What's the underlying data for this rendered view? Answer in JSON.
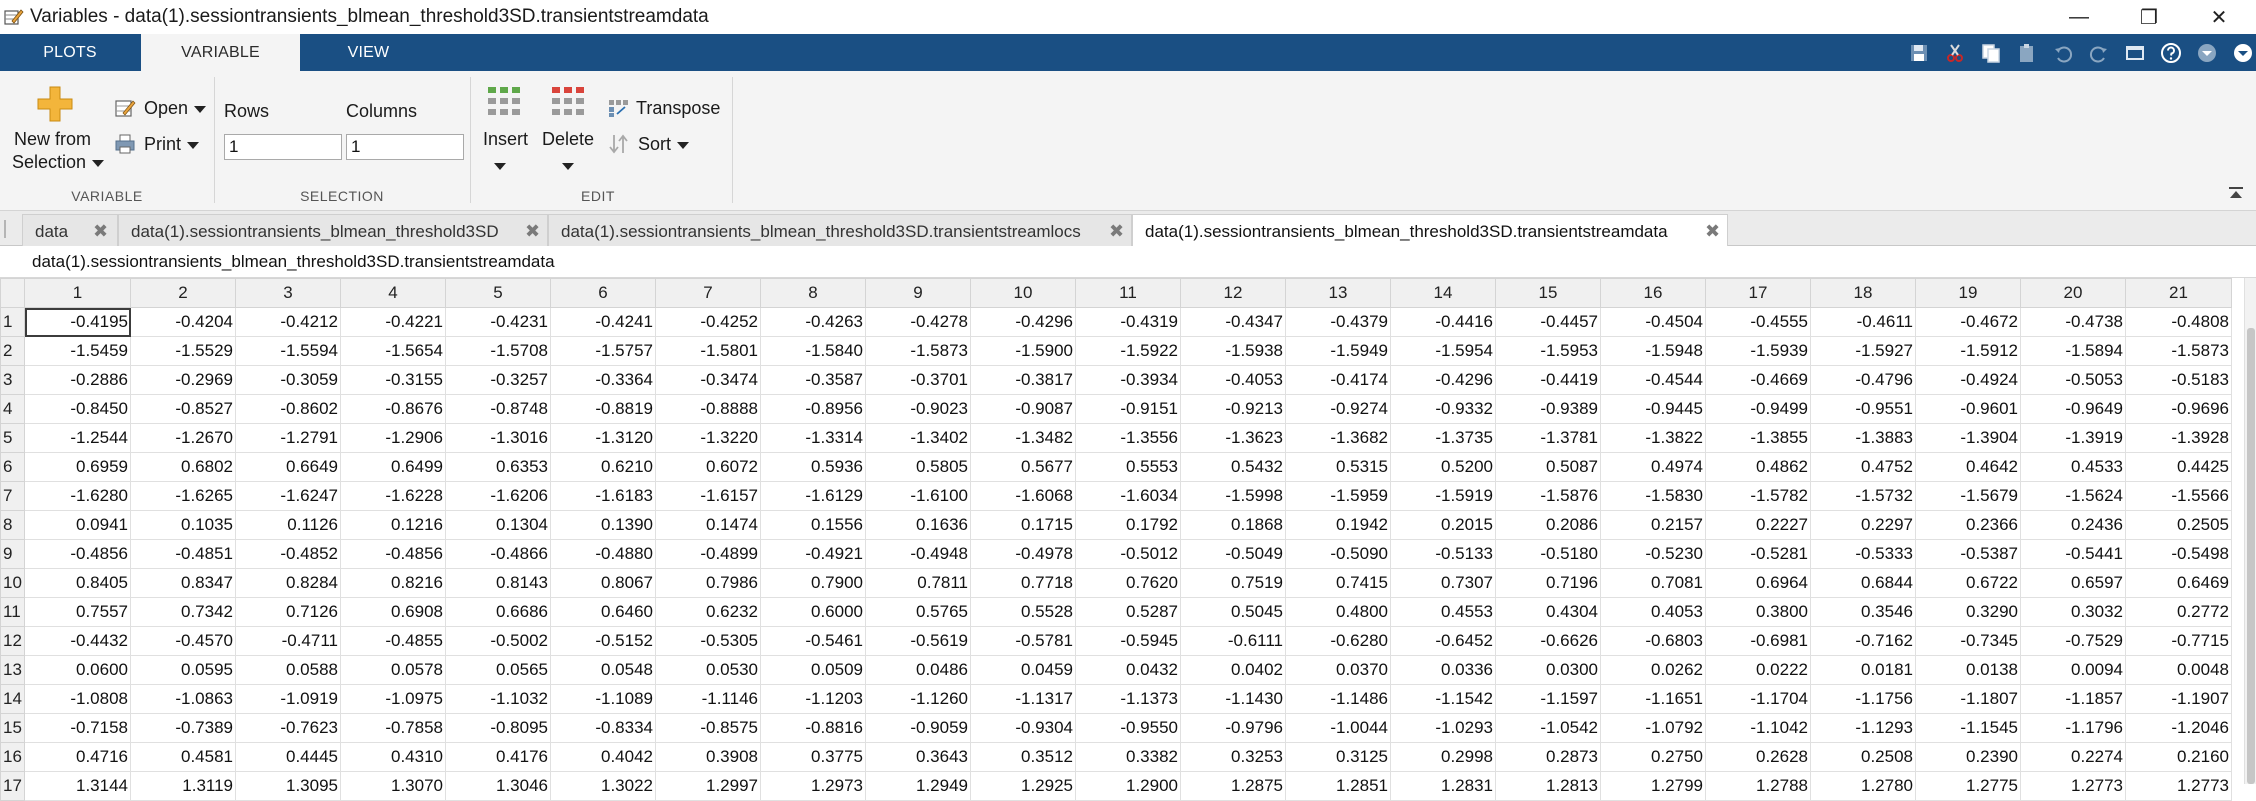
{
  "window": {
    "title": "Variables - data(1).sessiontransients_blmean_threshold3SD.transientstreamdata",
    "minimize_glyph": "—",
    "restore_glyph": "❐",
    "close_glyph": "✕"
  },
  "ribbon": {
    "tabs": [
      {
        "label": "PLOTS"
      },
      {
        "label": "VARIABLE"
      },
      {
        "label": "VIEW"
      }
    ],
    "accent_color": "#1a4f83"
  },
  "toolstrip": {
    "variable_section": {
      "label": "VARIABLE",
      "new_from_selection_line1": "New from",
      "new_from_selection_line2": "Selection",
      "open_label": "Open",
      "print_label": "Print"
    },
    "selection_section": {
      "label": "SELECTION",
      "rows_label": "Rows",
      "columns_label": "Columns",
      "rows_value": "1",
      "columns_value": "1"
    },
    "edit_section": {
      "label": "EDIT",
      "insert_label": "Insert",
      "delete_label": "Delete",
      "transpose_label": "Transpose",
      "sort_label": "Sort"
    }
  },
  "document_tabs": [
    {
      "label": "data"
    },
    {
      "label": "data(1).sessiontransients_blmean_threshold3SD"
    },
    {
      "label": "data(1).sessiontransients_blmean_threshold3SD.transientstreamlocs"
    },
    {
      "label": "data(1).sessiontransients_blmean_threshold3SD.transientstreamdata"
    }
  ],
  "close_glyph": "✖",
  "variable_path": "data(1).sessiontransients_blmean_threshold3SD.transientstreamdata",
  "grid": {
    "columns": [
      "1",
      "2",
      "3",
      "4",
      "5",
      "6",
      "7",
      "8",
      "9",
      "10",
      "11",
      "12",
      "13",
      "14",
      "15",
      "16",
      "17",
      "18",
      "19",
      "20",
      "21"
    ],
    "rows": [
      {
        "label": "1",
        "cells": [
          "-0.4195",
          "-0.4204",
          "-0.4212",
          "-0.4221",
          "-0.4231",
          "-0.4241",
          "-0.4252",
          "-0.4263",
          "-0.4278",
          "-0.4296",
          "-0.4319",
          "-0.4347",
          "-0.4379",
          "-0.4416",
          "-0.4457",
          "-0.4504",
          "-0.4555",
          "-0.4611",
          "-0.4672",
          "-0.4738",
          "-0.4808"
        ]
      },
      {
        "label": "2",
        "cells": [
          "-1.5459",
          "-1.5529",
          "-1.5594",
          "-1.5654",
          "-1.5708",
          "-1.5757",
          "-1.5801",
          "-1.5840",
          "-1.5873",
          "-1.5900",
          "-1.5922",
          "-1.5938",
          "-1.5949",
          "-1.5954",
          "-1.5953",
          "-1.5948",
          "-1.5939",
          "-1.5927",
          "-1.5912",
          "-1.5894",
          "-1.5873"
        ]
      },
      {
        "label": "3",
        "cells": [
          "-0.2886",
          "-0.2969",
          "-0.3059",
          "-0.3155",
          "-0.3257",
          "-0.3364",
          "-0.3474",
          "-0.3587",
          "-0.3701",
          "-0.3817",
          "-0.3934",
          "-0.4053",
          "-0.4174",
          "-0.4296",
          "-0.4419",
          "-0.4544",
          "-0.4669",
          "-0.4796",
          "-0.4924",
          "-0.5053",
          "-0.5183"
        ]
      },
      {
        "label": "4",
        "cells": [
          "-0.8450",
          "-0.8527",
          "-0.8602",
          "-0.8676",
          "-0.8748",
          "-0.8819",
          "-0.8888",
          "-0.8956",
          "-0.9023",
          "-0.9087",
          "-0.9151",
          "-0.9213",
          "-0.9274",
          "-0.9332",
          "-0.9389",
          "-0.9445",
          "-0.9499",
          "-0.9551",
          "-0.9601",
          "-0.9649",
          "-0.9696"
        ]
      },
      {
        "label": "5",
        "cells": [
          "-1.2544",
          "-1.2670",
          "-1.2791",
          "-1.2906",
          "-1.3016",
          "-1.3120",
          "-1.3220",
          "-1.3314",
          "-1.3402",
          "-1.3482",
          "-1.3556",
          "-1.3623",
          "-1.3682",
          "-1.3735",
          "-1.3781",
          "-1.3822",
          "-1.3855",
          "-1.3883",
          "-1.3904",
          "-1.3919",
          "-1.3928"
        ]
      },
      {
        "label": "6",
        "cells": [
          "0.6959",
          "0.6802",
          "0.6649",
          "0.6499",
          "0.6353",
          "0.6210",
          "0.6072",
          "0.5936",
          "0.5805",
          "0.5677",
          "0.5553",
          "0.5432",
          "0.5315",
          "0.5200",
          "0.5087",
          "0.4974",
          "0.4862",
          "0.4752",
          "0.4642",
          "0.4533",
          "0.4425"
        ]
      },
      {
        "label": "7",
        "cells": [
          "-1.6280",
          "-1.6265",
          "-1.6247",
          "-1.6228",
          "-1.6206",
          "-1.6183",
          "-1.6157",
          "-1.6129",
          "-1.6100",
          "-1.6068",
          "-1.6034",
          "-1.5998",
          "-1.5959",
          "-1.5919",
          "-1.5876",
          "-1.5830",
          "-1.5782",
          "-1.5732",
          "-1.5679",
          "-1.5624",
          "-1.5566"
        ]
      },
      {
        "label": "8",
        "cells": [
          "0.0941",
          "0.1035",
          "0.1126",
          "0.1216",
          "0.1304",
          "0.1390",
          "0.1474",
          "0.1556",
          "0.1636",
          "0.1715",
          "0.1792",
          "0.1868",
          "0.1942",
          "0.2015",
          "0.2086",
          "0.2157",
          "0.2227",
          "0.2297",
          "0.2366",
          "0.2436",
          "0.2505"
        ]
      },
      {
        "label": "9",
        "cells": [
          "-0.4856",
          "-0.4851",
          "-0.4852",
          "-0.4856",
          "-0.4866",
          "-0.4880",
          "-0.4899",
          "-0.4921",
          "-0.4948",
          "-0.4978",
          "-0.5012",
          "-0.5049",
          "-0.5090",
          "-0.5133",
          "-0.5180",
          "-0.5230",
          "-0.5281",
          "-0.5333",
          "-0.5387",
          "-0.5441",
          "-0.5498"
        ]
      },
      {
        "label": "10",
        "cells": [
          "0.8405",
          "0.8347",
          "0.8284",
          "0.8216",
          "0.8143",
          "0.8067",
          "0.7986",
          "0.7900",
          "0.7811",
          "0.7718",
          "0.7620",
          "0.7519",
          "0.7415",
          "0.7307",
          "0.7196",
          "0.7081",
          "0.6964",
          "0.6844",
          "0.6722",
          "0.6597",
          "0.6469"
        ]
      },
      {
        "label": "11",
        "cells": [
          "0.7557",
          "0.7342",
          "0.7126",
          "0.6908",
          "0.6686",
          "0.6460",
          "0.6232",
          "0.6000",
          "0.5765",
          "0.5528",
          "0.5287",
          "0.5045",
          "0.4800",
          "0.4553",
          "0.4304",
          "0.4053",
          "0.3800",
          "0.3546",
          "0.3290",
          "0.3032",
          "0.2772"
        ]
      },
      {
        "label": "12",
        "cells": [
          "-0.4432",
          "-0.4570",
          "-0.4711",
          "-0.4855",
          "-0.5002",
          "-0.5152",
          "-0.5305",
          "-0.5461",
          "-0.5619",
          "-0.5781",
          "-0.5945",
          "-0.6111",
          "-0.6280",
          "-0.6452",
          "-0.6626",
          "-0.6803",
          "-0.6981",
          "-0.7162",
          "-0.7345",
          "-0.7529",
          "-0.7715"
        ]
      },
      {
        "label": "13",
        "cells": [
          "0.0600",
          "0.0595",
          "0.0588",
          "0.0578",
          "0.0565",
          "0.0548",
          "0.0530",
          "0.0509",
          "0.0486",
          "0.0459",
          "0.0432",
          "0.0402",
          "0.0370",
          "0.0336",
          "0.0300",
          "0.0262",
          "0.0222",
          "0.0181",
          "0.0138",
          "0.0094",
          "0.0048"
        ]
      },
      {
        "label": "14",
        "cells": [
          "-1.0808",
          "-1.0863",
          "-1.0919",
          "-1.0975",
          "-1.1032",
          "-1.1089",
          "-1.1146",
          "-1.1203",
          "-1.1260",
          "-1.1317",
          "-1.1373",
          "-1.1430",
          "-1.1486",
          "-1.1542",
          "-1.1597",
          "-1.1651",
          "-1.1704",
          "-1.1756",
          "-1.1807",
          "-1.1857",
          "-1.1907"
        ]
      },
      {
        "label": "15",
        "cells": [
          "-0.7158",
          "-0.7389",
          "-0.7623",
          "-0.7858",
          "-0.8095",
          "-0.8334",
          "-0.8575",
          "-0.8816",
          "-0.9059",
          "-0.9304",
          "-0.9550",
          "-0.9796",
          "-1.0044",
          "-1.0293",
          "-1.0542",
          "-1.0792",
          "-1.1042",
          "-1.1293",
          "-1.1545",
          "-1.1796",
          "-1.2046"
        ]
      },
      {
        "label": "16",
        "cells": [
          "0.4716",
          "0.4581",
          "0.4445",
          "0.4310",
          "0.4176",
          "0.4042",
          "0.3908",
          "0.3775",
          "0.3643",
          "0.3512",
          "0.3382",
          "0.3253",
          "0.3125",
          "0.2998",
          "0.2873",
          "0.2750",
          "0.2628",
          "0.2508",
          "0.2390",
          "0.2274",
          "0.2160"
        ]
      },
      {
        "label": "17",
        "cells": [
          "1.3144",
          "1.3119",
          "1.3095",
          "1.3070",
          "1.3046",
          "1.3022",
          "1.2997",
          "1.2973",
          "1.2949",
          "1.2925",
          "1.2900",
          "1.2875",
          "1.2851",
          "1.2831",
          "1.2813",
          "1.2799",
          "1.2788",
          "1.2780",
          "1.2775",
          "1.2773",
          "1.2773"
        ]
      }
    ],
    "selected_cell": "1,1"
  }
}
